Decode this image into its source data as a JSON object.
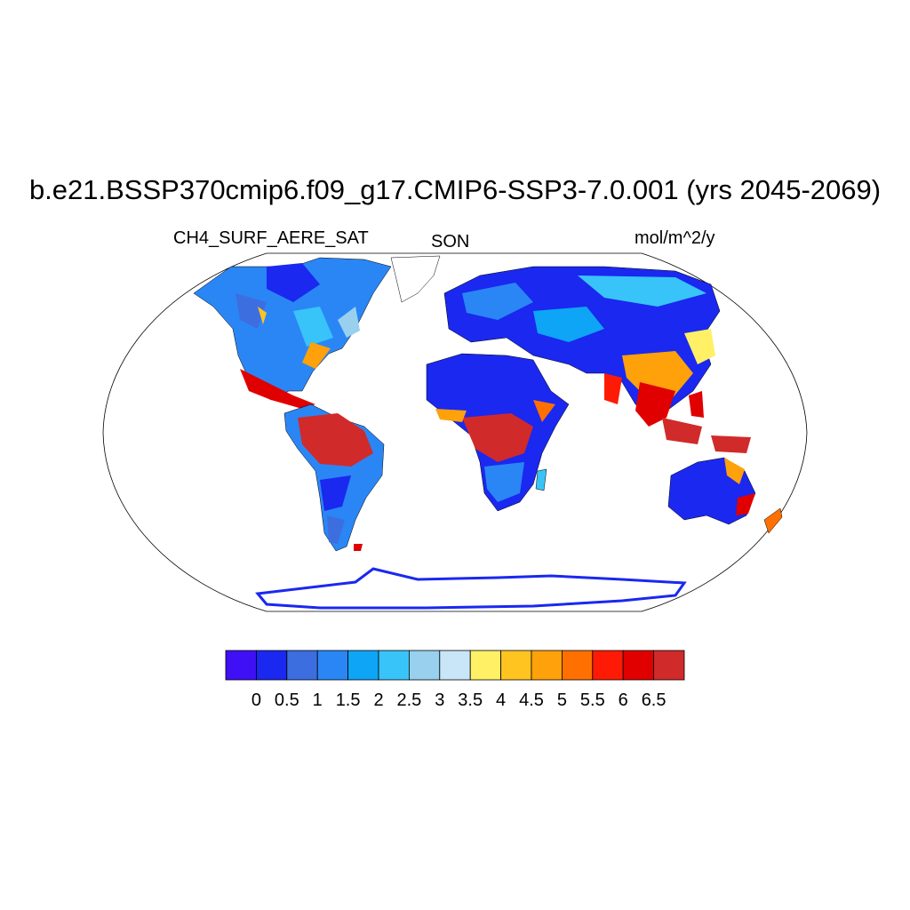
{
  "title": "b.e21.BSSP370cmip6.f09_g17.CMIP6-SSP3-7.0.001 (yrs 2045-2069)",
  "variable": "CH4_SURF_AERE_SAT",
  "season": "SON",
  "units": "mol/m^2/y",
  "map": {
    "projection": "robinson",
    "border_color": "#000000",
    "ocean_color": "#ffffff"
  },
  "colorbar": {
    "colors": [
      "#3f10f5",
      "#1a28f0",
      "#3d6ee0",
      "#2a86f5",
      "#0ea5f7",
      "#38c4f8",
      "#98d0ee",
      "#c8e6f8",
      "#fff066",
      "#ffc41f",
      "#ffa10a",
      "#ff7000",
      "#ff1a05",
      "#e00000",
      "#d12a2a"
    ],
    "tick_labels": [
      "0",
      "0.5",
      "1",
      "1.5",
      "2",
      "2.5",
      "3",
      "3.5",
      "4",
      "4.5",
      "5",
      "5.5",
      "6",
      "6.5"
    ]
  }
}
